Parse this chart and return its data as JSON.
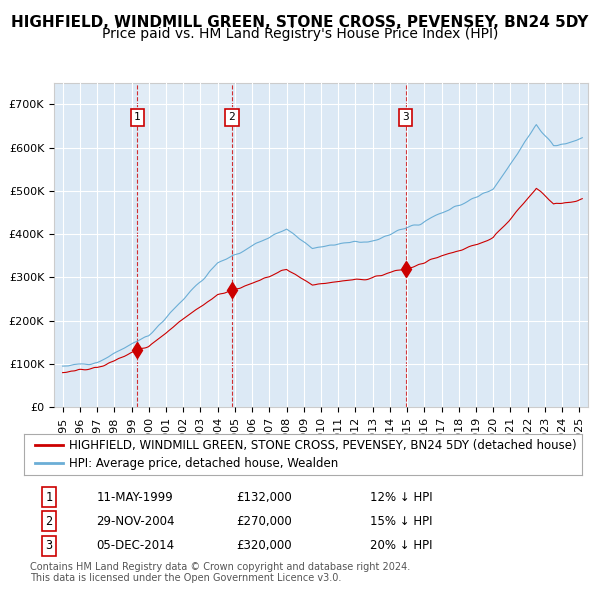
{
  "title": "HIGHFIELD, WINDMILL GREEN, STONE CROSS, PEVENSEY, BN24 5DY",
  "subtitle": "Price paid vs. HM Land Registry's House Price Index (HPI)",
  "legend_property": "HIGHFIELD, WINDMILL GREEN, STONE CROSS, PEVENSEY, BN24 5DY (detached house)",
  "legend_hpi": "HPI: Average price, detached house, Wealden",
  "sale_dates": [
    "1999-05-11",
    "2004-11-29",
    "2014-12-05"
  ],
  "sale_prices": [
    132000,
    270000,
    320000
  ],
  "sale_labels": [
    "1",
    "2",
    "3"
  ],
  "sale_pct": [
    "12% ↓ HPI",
    "15% ↓ HPI",
    "20% ↓ HPI"
  ],
  "table_dates": [
    "11-MAY-1999",
    "29-NOV-2004",
    "05-DEC-2014"
  ],
  "table_prices": [
    "£132,000",
    "£270,000",
    "£320,000"
  ],
  "ylabel_ticks": [
    "£0",
    "£100K",
    "£200K",
    "£300K",
    "£400K",
    "£500K",
    "£600K",
    "£700K"
  ],
  "ytick_values": [
    0,
    100000,
    200000,
    300000,
    400000,
    500000,
    600000,
    700000
  ],
  "ylim": [
    0,
    750000
  ],
  "xlim_start": 1994.5,
  "xlim_end": 2025.5,
  "background_color": "#ffffff",
  "plot_bg_color": "#dce9f5",
  "grid_color": "#ffffff",
  "hpi_line_color": "#6baed6",
  "property_line_color": "#cc0000",
  "sale_marker_color": "#cc0000",
  "vline_color": "#cc0000",
  "shade_color": "#dce9f5",
  "footer_text": "Contains HM Land Registry data © Crown copyright and database right 2024.\nThis data is licensed under the Open Government Licence v3.0.",
  "title_fontsize": 11,
  "subtitle_fontsize": 10,
  "tick_fontsize": 8,
  "legend_fontsize": 8.5,
  "table_fontsize": 8.5,
  "footer_fontsize": 7
}
